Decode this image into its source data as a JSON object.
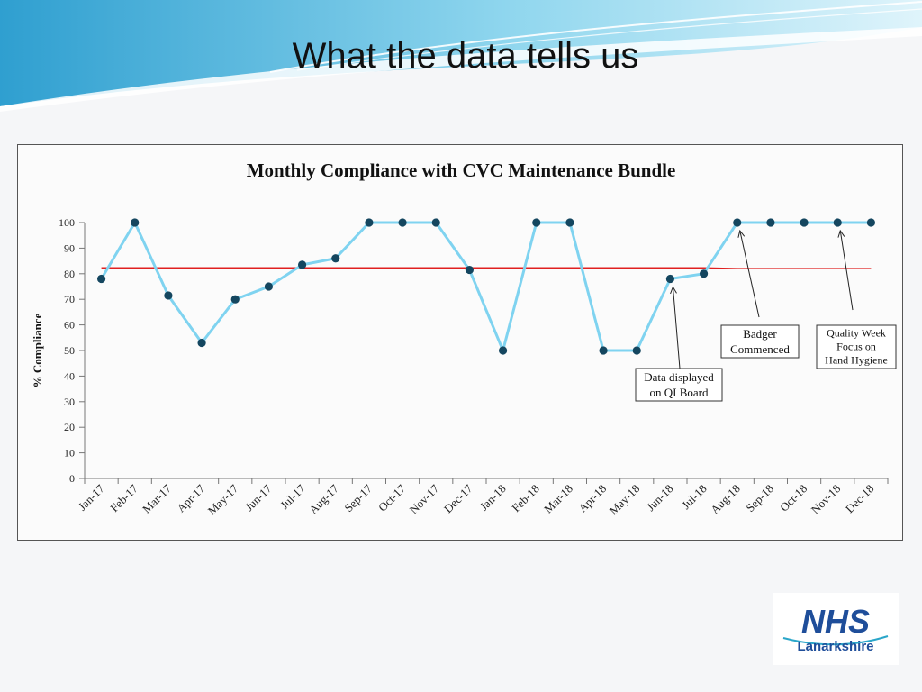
{
  "slide": {
    "title": "What the data tells us"
  },
  "logo": {
    "badge": "NHS",
    "name": "Lanarkshire"
  },
  "colors": {
    "series_line": "#7fd3f0",
    "marker": "#14465f",
    "median_line": "#e02020",
    "nhs_blue": "#1f4e9a"
  },
  "chart_data": {
    "type": "line",
    "title": "Monthly Compliance with CVC Maintenance Bundle",
    "ylabel": "% Compliance",
    "xlabel": "",
    "ylim": [
      0,
      100
    ],
    "yticks": [
      0,
      10,
      20,
      30,
      40,
      50,
      60,
      70,
      80,
      90,
      100
    ],
    "categories": [
      "Jan-17",
      "Feb-17",
      "Mar-17",
      "Apr-17",
      "May-17",
      "Jun-17",
      "Jul-17",
      "Aug-17",
      "Sep-17",
      "Oct-17",
      "Nov-17",
      "Dec-17",
      "Jan-18",
      "Feb-18",
      "Mar-18",
      "Apr-18",
      "May-18",
      "Jun-18",
      "Jul-18",
      "Aug-18",
      "Sep-18",
      "Oct-18",
      "Nov-18",
      "Dec-18"
    ],
    "series": [
      {
        "values": [
          78,
          100,
          71.5,
          53,
          70,
          75,
          83.5,
          86,
          100,
          100,
          100,
          81.5,
          50,
          100,
          100,
          50,
          50,
          78,
          80,
          100,
          100,
          100,
          100,
          100
        ]
      }
    ],
    "median": {
      "values": [
        82.3,
        82.3,
        82.3,
        82.3,
        82.3,
        82.3,
        82.3,
        82.3,
        82.3,
        82.3,
        82.3,
        82.3,
        82.3,
        82.3,
        82.3,
        82.3,
        82.3,
        82.3,
        82.3,
        82,
        82,
        82,
        82,
        82
      ]
    },
    "grid": false,
    "annotations": [
      {
        "lines": [
          "Data displayed",
          "on QI Board"
        ],
        "category": "Jun-18",
        "value": 78
      },
      {
        "lines": [
          "Badger",
          "Commenced"
        ],
        "category": "Aug-18",
        "value": 100
      },
      {
        "lines": [
          "Quality Week",
          "Focus on",
          "Hand Hygiene"
        ],
        "category": "Nov-18",
        "value": 100
      }
    ]
  }
}
